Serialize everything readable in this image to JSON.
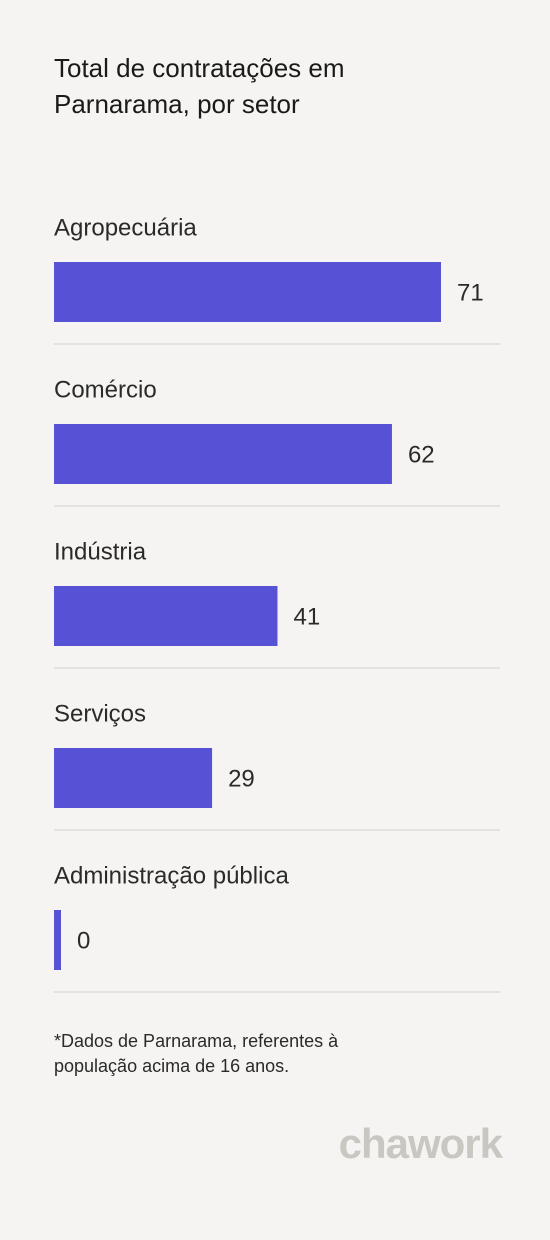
{
  "chart_data": {
    "type": "bar",
    "orientation": "horizontal",
    "title": "Total de contratações em Parnarama, por setor",
    "categories": [
      "Agropecuária",
      "Comércio",
      "Indústria",
      "Serviços",
      "Administração pública"
    ],
    "values": [
      71,
      62,
      41,
      29,
      0
    ],
    "color": "#5751d6",
    "note": "*Dados de Parnarama, referentes à população acima de 16 anos.",
    "brand": "chawork"
  }
}
